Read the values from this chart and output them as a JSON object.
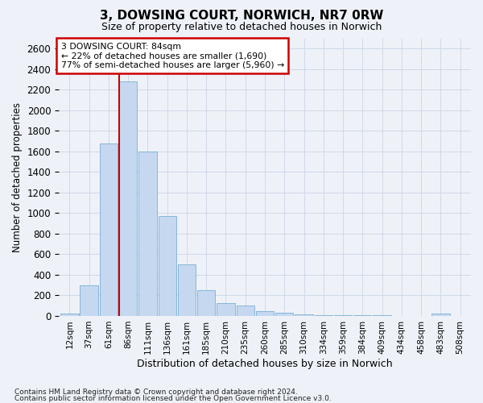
{
  "title1": "3, DOWSING COURT, NORWICH, NR7 0RW",
  "title2": "Size of property relative to detached houses in Norwich",
  "xlabel": "Distribution of detached houses by size in Norwich",
  "ylabel": "Number of detached properties",
  "categories": [
    "12sqm",
    "37sqm",
    "61sqm",
    "86sqm",
    "111sqm",
    "136sqm",
    "161sqm",
    "185sqm",
    "210sqm",
    "235sqm",
    "260sqm",
    "285sqm",
    "310sqm",
    "334sqm",
    "359sqm",
    "384sqm",
    "409sqm",
    "434sqm",
    "458sqm",
    "483sqm",
    "508sqm"
  ],
  "values": [
    20,
    300,
    1680,
    2280,
    1600,
    970,
    500,
    248,
    125,
    100,
    48,
    30,
    15,
    8,
    5,
    5,
    5,
    2,
    2,
    20,
    2
  ],
  "bar_color": "#c5d8f0",
  "bar_edge_color": "#7aafd4",
  "vline_color": "#cc0000",
  "vline_index": 3,
  "annotation_text": "3 DOWSING COURT: 84sqm\n← 22% of detached houses are smaller (1,690)\n77% of semi-detached houses are larger (5,960) →",
  "annotation_box_color": "#ffffff",
  "annotation_box_edge": "#cc0000",
  "ylim": [
    0,
    2700
  ],
  "yticks": [
    0,
    200,
    400,
    600,
    800,
    1000,
    1200,
    1400,
    1600,
    1800,
    2000,
    2200,
    2400,
    2600
  ],
  "footer1": "Contains HM Land Registry data © Crown copyright and database right 2024.",
  "footer2": "Contains public sector information licensed under the Open Government Licence v3.0.",
  "background_color": "#eef2f8",
  "grid_color": "#d0d8e8",
  "fig_width": 6.0,
  "fig_height": 5.0
}
